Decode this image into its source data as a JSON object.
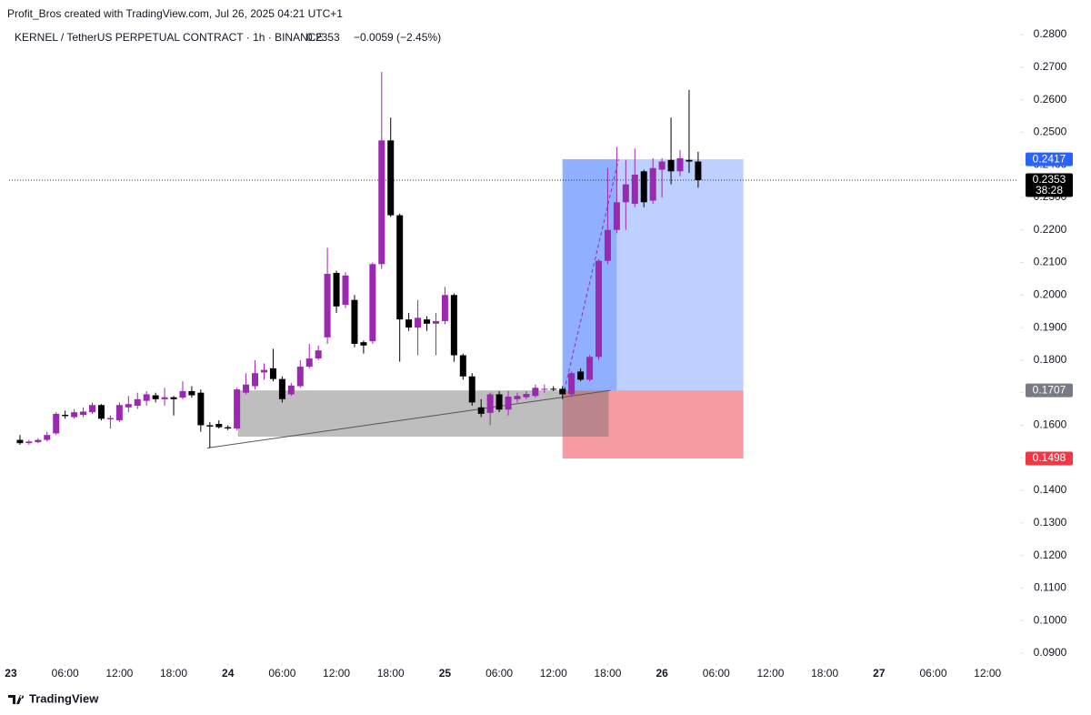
{
  "header": {
    "credit": "Profit_Bros created with TradingView.com, Jul 26, 2025 04:21 UTC+1",
    "symbol": "KERNEL / TetherUS PERPETUAL CONTRACT · 1h · BINANCE",
    "last": "0.2353",
    "change": "−0.0059 (−2.45%)"
  },
  "footer": "TradingView",
  "chart_data": {
    "type": "candlestick",
    "up_color": "#9c27b0",
    "down_color": "#000000",
    "x": [
      1,
      2,
      3,
      4,
      5,
      6,
      7,
      8,
      9,
      10,
      11,
      12,
      13,
      14,
      15,
      16,
      17,
      18,
      19,
      20,
      21,
      22,
      23,
      24,
      25,
      26,
      27,
      28,
      29,
      30,
      31,
      32,
      33,
      34,
      35,
      36,
      37,
      38,
      39,
      40,
      41,
      42,
      43,
      44,
      45,
      46,
      47,
      48,
      49,
      50,
      51,
      52,
      53,
      54,
      55,
      56,
      57,
      58,
      59,
      60,
      61,
      62,
      63,
      64,
      65,
      66,
      67,
      68,
      69,
      70,
      71,
      72,
      73,
      74,
      75,
      76
    ],
    "open": [
      0.1555,
      0.1545,
      0.1548,
      0.1555,
      0.1575,
      0.1632,
      0.1625,
      0.1632,
      0.164,
      0.1662,
      0.1618,
      0.1615,
      0.1655,
      0.166,
      0.1675,
      0.1692,
      0.168,
      0.1686,
      0.1685,
      0.1705,
      0.17,
      0.16,
      0.1604,
      0.1594,
      0.159,
      0.17,
      0.172,
      0.1762,
      0.1775,
      0.1742,
      0.1695,
      0.172,
      0.178,
      0.1805,
      0.187,
      0.2068,
      0.197,
      0.1985,
      0.1855,
      0.1858,
      0.2095,
      0.2475,
      0.2245,
      0.1925,
      0.19,
      0.1925,
      0.1912,
      0.192,
      0.2,
      0.1815,
      0.175,
      0.1655,
      0.1638,
      0.1695,
      0.1648,
      0.168,
      0.1686,
      0.169,
      0.171,
      0.1712,
      0.1712,
      0.1695,
      0.1765,
      0.174,
      0.181,
      0.2105,
      0.22,
      0.2285,
      0.228,
      0.238,
      0.229,
      0.2385,
      0.2415,
      0.238,
      0.2415,
      0.241
    ],
    "high": [
      0.157,
      0.1555,
      0.156,
      0.158,
      0.164,
      0.1645,
      0.165,
      0.1655,
      0.167,
      0.1665,
      0.163,
      0.167,
      0.169,
      0.17,
      0.1705,
      0.17,
      0.1715,
      0.169,
      0.1735,
      0.172,
      0.171,
      0.161,
      0.1615,
      0.16,
      0.1715,
      0.176,
      0.18,
      0.179,
      0.1835,
      0.175,
      0.173,
      0.18,
      0.185,
      0.1845,
      0.2145,
      0.2075,
      0.207,
      0.2,
      0.186,
      0.21,
      0.2685,
      0.2545,
      0.225,
      0.1945,
      0.1985,
      0.1935,
      0.1945,
      0.2025,
      0.2005,
      0.182,
      0.176,
      0.168,
      0.17,
      0.1705,
      0.1705,
      0.17,
      0.1705,
      0.1725,
      0.1725,
      0.172,
      0.172,
      0.1765,
      0.1775,
      0.1815,
      0.211,
      0.239,
      0.2455,
      0.2415,
      0.245,
      0.2385,
      0.242,
      0.242,
      0.2545,
      0.2445,
      0.263,
      0.244
    ],
    "low": [
      0.154,
      0.154,
      0.1545,
      0.155,
      0.157,
      0.162,
      0.162,
      0.1625,
      0.1635,
      0.1615,
      0.159,
      0.161,
      0.164,
      0.165,
      0.166,
      0.167,
      0.166,
      0.163,
      0.168,
      0.1685,
      0.158,
      0.153,
      0.159,
      0.1585,
      0.1585,
      0.1695,
      0.171,
      0.174,
      0.1735,
      0.167,
      0.169,
      0.1715,
      0.1775,
      0.18,
      0.185,
      0.1945,
      0.196,
      0.184,
      0.182,
      0.185,
      0.208,
      0.224,
      0.1795,
      0.189,
      0.1815,
      0.189,
      0.1815,
      0.191,
      0.1795,
      0.174,
      0.166,
      0.1625,
      0.16,
      0.164,
      0.163,
      0.167,
      0.168,
      0.1685,
      0.17,
      0.1705,
      0.168,
      0.169,
      0.1735,
      0.1735,
      0.18,
      0.2095,
      0.219,
      0.22,
      0.227,
      0.227,
      0.228,
      0.23,
      0.234,
      0.2365,
      0.2375,
      0.233
    ],
    "close": [
      0.1545,
      0.155,
      0.1555,
      0.157,
      0.1635,
      0.1628,
      0.164,
      0.1642,
      0.1662,
      0.162,
      0.1622,
      0.1662,
      0.1665,
      0.168,
      0.1695,
      0.168,
      0.1686,
      0.168,
      0.1705,
      0.1692,
      0.16,
      0.1596,
      0.1594,
      0.159,
      0.171,
      0.1725,
      0.176,
      0.177,
      0.1742,
      0.168,
      0.1722,
      0.178,
      0.1805,
      0.183,
      0.2065,
      0.1965,
      0.206,
      0.185,
      0.1845,
      0.2095,
      0.2475,
      0.2245,
      0.1925,
      0.19,
      0.193,
      0.1912,
      0.192,
      0.2,
      0.1815,
      0.175,
      0.167,
      0.1635,
      0.1695,
      0.1648,
      0.1688,
      0.169,
      0.1696,
      0.1715,
      0.1712,
      0.171,
      0.1695,
      0.176,
      0.174,
      0.181,
      0.2105,
      0.22,
      0.2285,
      0.234,
      0.237,
      0.2285,
      0.239,
      0.241,
      0.238,
      0.242,
      0.241,
      0.2353
    ],
    "xlim": [
      -0.2,
      111.4
    ],
    "ylim": [
      0.0872,
      0.2828
    ],
    "xticks": [
      {
        "value": 0,
        "label": "23"
      },
      {
        "value": 6,
        "label": "06:00"
      },
      {
        "value": 12,
        "label": "12:00"
      },
      {
        "value": 18,
        "label": "18:00"
      },
      {
        "value": 24,
        "label": "24"
      },
      {
        "value": 30,
        "label": "06:00"
      },
      {
        "value": 36,
        "label": "12:00"
      },
      {
        "value": 42,
        "label": "18:00"
      },
      {
        "value": 48,
        "label": "25"
      },
      {
        "value": 54,
        "label": "06:00"
      },
      {
        "value": 60,
        "label": "12:00"
      },
      {
        "value": 66,
        "label": "18:00"
      },
      {
        "value": 72,
        "label": "26"
      },
      {
        "value": 78,
        "label": "06:00"
      },
      {
        "value": 84,
        "label": "12:00"
      },
      {
        "value": 90,
        "label": "18:00"
      },
      {
        "value": 96,
        "label": "27"
      },
      {
        "value": 102,
        "label": "06:00"
      },
      {
        "value": 108,
        "label": "12:00"
      }
    ],
    "yticks": [
      {
        "value": 0.28,
        "label": "0.2800"
      },
      {
        "value": 0.27,
        "label": "0.2700"
      },
      {
        "value": 0.26,
        "label": "0.2600"
      },
      {
        "value": 0.25,
        "label": "0.2500"
      },
      {
        "value": 0.24,
        "label": "0.2400"
      },
      {
        "value": 0.23,
        "label": "0.2300"
      },
      {
        "value": 0.22,
        "label": "0.2200"
      },
      {
        "value": 0.21,
        "label": "0.2100"
      },
      {
        "value": 0.2,
        "label": "0.2000"
      },
      {
        "value": 0.19,
        "label": "0.1900"
      },
      {
        "value": 0.18,
        "label": "0.1800"
      },
      {
        "value": 0.17,
        "label": "0.1700"
      },
      {
        "value": 0.16,
        "label": "0.1600"
      },
      {
        "value": 0.15,
        "label": "0.1500"
      },
      {
        "value": 0.14,
        "label": "0.1400"
      },
      {
        "value": 0.13,
        "label": "0.1300"
      },
      {
        "value": 0.12,
        "label": "0.1200"
      },
      {
        "value": 0.11,
        "label": "0.1100"
      },
      {
        "value": 0.1,
        "label": "0.1000"
      },
      {
        "value": 0.09,
        "label": "0.0900"
      }
    ],
    "zones": [
      {
        "x0": 61,
        "x1": 81,
        "y0": 0.1707,
        "y1": 0.2417,
        "color": "rgba(41,98,255,0.3)"
      },
      {
        "x0": 61,
        "x1": 67,
        "y0": 0.1707,
        "y1": 0.2417,
        "color": "rgba(41,98,255,0.3)"
      },
      {
        "x0": 61,
        "x1": 81,
        "y0": 0.1498,
        "y1": 0.1707,
        "color": "rgba(242,54,69,0.5)"
      },
      {
        "x0": 25.1,
        "x1": 66.1,
        "y0": 0.1565,
        "y1": 0.1707,
        "color": "rgba(110,110,110,0.45)"
      }
    ],
    "lines": [
      {
        "x0": 21.7,
        "y0": 0.153,
        "x1": 66.3,
        "y1": 0.1707,
        "color": "#555555",
        "dash": false
      },
      {
        "x0": 61.2,
        "y0": 0.1707,
        "x1": 67.2,
        "y1": 0.2417,
        "color": "#9c27b0",
        "dash": true
      }
    ],
    "last_price": 0.2353,
    "price_labels": [
      {
        "value": 0.2417,
        "label": "0.2417",
        "color": "#2962ff"
      },
      {
        "value": 0.2353,
        "label": "0.2353",
        "color": "#000000",
        "extra": "38:28"
      },
      {
        "value": 0.1707,
        "label": "0.1707",
        "color": "#787b86"
      },
      {
        "value": 0.1498,
        "label": "0.1498",
        "color": "#f23645"
      }
    ]
  }
}
